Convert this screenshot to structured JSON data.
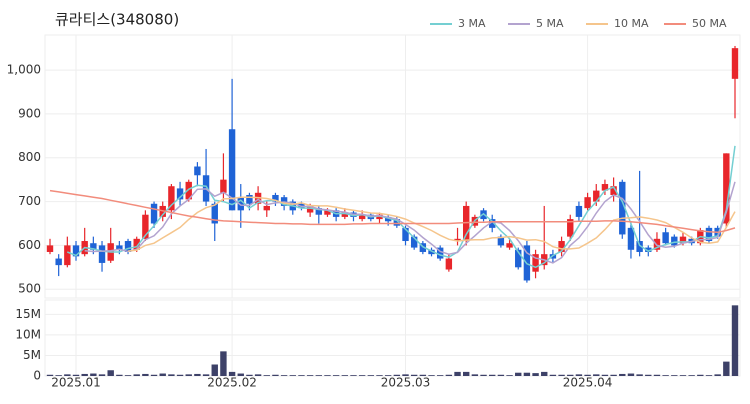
{
  "chart_data": {
    "type": "candlestick",
    "title": "큐라티스(348080)",
    "categories": [
      null,
      null,
      null,
      "2025.01",
      null,
      null,
      null,
      null,
      null,
      null,
      null,
      null,
      null,
      null,
      null,
      null,
      null,
      null,
      null,
      null,
      null,
      "2025.02",
      null,
      null,
      null,
      null,
      null,
      null,
      null,
      null,
      null,
      null,
      null,
      null,
      null,
      null,
      null,
      null,
      null,
      null,
      null,
      "2025.03",
      null,
      null,
      null,
      null,
      null,
      null,
      null,
      null,
      null,
      null,
      null,
      null,
      null,
      null,
      null,
      null,
      null,
      null,
      null,
      null,
      "2025.04",
      null,
      null,
      null,
      null,
      null,
      null,
      null,
      null,
      null,
      null,
      null,
      null,
      null,
      null,
      null,
      null,
      null
    ],
    "open": [
      585,
      570,
      555,
      600,
      580,
      605,
      600,
      565,
      600,
      610,
      590,
      615,
      695,
      665,
      680,
      730,
      705,
      780,
      760,
      695,
      720,
      865,
      710,
      715,
      695,
      680,
      715,
      710,
      700,
      695,
      675,
      685,
      670,
      680,
      665,
      675,
      660,
      670,
      660,
      665,
      660,
      640,
      620,
      605,
      590,
      595,
      545,
      610,
      610,
      645,
      680,
      660,
      620,
      595,
      590,
      600,
      540,
      555,
      580,
      585,
      620,
      690,
      685,
      700,
      725,
      715,
      745,
      640,
      610,
      595,
      590,
      630,
      620,
      605,
      615,
      605,
      640,
      640,
      650,
      980
    ],
    "high": [
      615,
      580,
      620,
      610,
      640,
      620,
      610,
      640,
      610,
      615,
      620,
      680,
      700,
      700,
      740,
      745,
      750,
      790,
      820,
      700,
      810,
      980,
      740,
      720,
      735,
      700,
      720,
      715,
      705,
      700,
      695,
      690,
      685,
      685,
      685,
      680,
      680,
      675,
      675,
      670,
      665,
      645,
      625,
      610,
      595,
      600,
      580,
      640,
      700,
      670,
      685,
      670,
      625,
      615,
      595,
      610,
      590,
      690,
      590,
      620,
      670,
      700,
      720,
      740,
      750,
      755,
      750,
      655,
      770,
      600,
      630,
      640,
      625,
      630,
      620,
      640,
      645,
      645,
      810,
      1055
    ],
    "low": [
      580,
      530,
      550,
      565,
      575,
      580,
      540,
      560,
      580,
      580,
      585,
      610,
      640,
      655,
      660,
      690,
      700,
      735,
      690,
      610,
      700,
      680,
      640,
      680,
      680,
      665,
      690,
      680,
      670,
      680,
      665,
      650,
      665,
      655,
      660,
      655,
      655,
      655,
      650,
      645,
      640,
      600,
      590,
      580,
      575,
      565,
      540,
      600,
      600,
      640,
      655,
      630,
      595,
      590,
      545,
      515,
      525,
      545,
      560,
      575,
      610,
      655,
      680,
      690,
      715,
      700,
      615,
      570,
      575,
      575,
      585,
      600,
      595,
      600,
      600,
      600,
      605,
      615,
      640,
      890
    ],
    "close": [
      600,
      555,
      600,
      575,
      610,
      590,
      560,
      605,
      590,
      585,
      615,
      670,
      650,
      690,
      735,
      705,
      745,
      760,
      700,
      650,
      750,
      680,
      680,
      695,
      720,
      690,
      700,
      690,
      680,
      685,
      690,
      670,
      680,
      665,
      675,
      665,
      670,
      660,
      670,
      655,
      645,
      610,
      595,
      585,
      580,
      570,
      570,
      615,
      690,
      665,
      660,
      640,
      600,
      605,
      550,
      520,
      580,
      580,
      570,
      610,
      660,
      665,
      710,
      725,
      740,
      735,
      625,
      590,
      585,
      585,
      615,
      605,
      600,
      620,
      605,
      635,
      610,
      620,
      810,
      1050
    ],
    "up_color": "#e8262b",
    "down_color": "#1f63d6",
    "ylim": [
      480,
      1080
    ],
    "yticks": [
      500,
      600,
      700,
      800,
      900,
      {
        "value": 1000,
        "label": "1,000"
      }
    ],
    "series": [
      {
        "name": "3 MA",
        "color": "#74cfd2",
        "values": [
          null,
          null,
          585,
          577,
          595,
          592,
          587,
          585,
          585,
          593,
          597,
          623,
          645,
          670,
          692,
          710,
          728,
          737,
          735,
          703,
          700,
          693,
          703,
          685,
          698,
          702,
          703,
          693,
          690,
          685,
          685,
          682,
          680,
          672,
          673,
          668,
          670,
          665,
          667,
          662,
          657,
          637,
          617,
          597,
          587,
          578,
          573,
          585,
          625,
          657,
          672,
          655,
          633,
          615,
          585,
          558,
          550,
          560,
          577,
          587,
          613,
          645,
          678,
          700,
          725,
          733,
          700,
          650,
          600,
          587,
          595,
          602,
          607,
          608,
          608,
          620,
          617,
          622,
          680,
          827
        ]
      },
      {
        "name": "5 MA",
        "color": "#b3a3cf",
        "values": [
          null,
          null,
          null,
          null,
          588,
          586,
          587,
          588,
          591,
          586,
          591,
          613,
          622,
          642,
          672,
          690,
          705,
          728,
          729,
          712,
          721,
          708,
          692,
          691,
          705,
          693,
          697,
          699,
          696,
          689,
          689,
          683,
          681,
          678,
          676,
          671,
          671,
          667,
          668,
          664,
          660,
          648,
          635,
          618,
          603,
          586,
          580,
          584,
          605,
          622,
          640,
          654,
          651,
          634,
          611,
          583,
          571,
          567,
          560,
          572,
          600,
          617,
          643,
          674,
          700,
          715,
          707,
          683,
          655,
          624,
          600,
          596,
          598,
          605,
          609,
          613,
          614,
          618,
          676,
          745
        ]
      },
      {
        "name": "10 MA",
        "color": "#f5c58c",
        "values": [
          null,
          null,
          null,
          null,
          null,
          null,
          null,
          null,
          null,
          587,
          589,
          600,
          605,
          617,
          629,
          641,
          659,
          675,
          686,
          692,
          706,
          707,
          710,
          710,
          709,
          707,
          703,
          696,
          694,
          697,
          691,
          690,
          690,
          687,
          683,
          680,
          677,
          674,
          673,
          670,
          666,
          660,
          651,
          643,
          634,
          623,
          614,
          610,
          612,
          613,
          613,
          617,
          618,
          620,
          617,
          612,
          613,
          609,
          597,
          592,
          592,
          594,
          605,
          617,
          636,
          658,
          662,
          663,
          665,
          662,
          658,
          652,
          641,
          630,
          617,
          607,
          605,
          608,
          641,
          677
        ]
      },
      {
        "name": "50 MA",
        "color": "#f28c7c",
        "values": [
          725,
          722,
          719,
          716,
          713,
          710,
          707,
          703,
          699,
          695,
          691,
          687,
          683,
          679,
          675,
          671,
          667,
          664,
          661,
          658,
          656,
          655,
          654,
          653,
          652,
          651,
          650,
          650,
          649,
          649,
          648,
          648,
          648,
          648,
          648,
          649,
          649,
          650,
          650,
          650,
          650,
          650,
          650,
          650,
          650,
          650,
          650,
          651,
          652,
          653,
          653,
          654,
          654,
          654,
          654,
          654,
          654,
          654,
          654,
          654,
          654,
          655,
          655,
          655,
          656,
          656,
          655,
          654,
          652,
          650,
          648,
          645,
          642,
          639,
          636,
          633,
          631,
          630,
          634,
          640
        ]
      }
    ],
    "volume": {
      "color": "#3d4168",
      "values": [
        300000,
        200000,
        400000,
        300000,
        500000,
        600000,
        400000,
        1400000,
        300000,
        200000,
        400000,
        500000,
        300000,
        600000,
        400000,
        300000,
        400000,
        500000,
        400000,
        2800000,
        6000000,
        1000000,
        600000,
        300000,
        400000,
        200000,
        300000,
        200000,
        200000,
        200000,
        200000,
        200000,
        200000,
        200000,
        200000,
        200000,
        200000,
        200000,
        200000,
        200000,
        300000,
        400000,
        300000,
        300000,
        200000,
        200000,
        300000,
        1000000,
        1000000,
        400000,
        300000,
        300000,
        300000,
        200000,
        800000,
        800000,
        700000,
        1000000,
        300000,
        300000,
        300000,
        400000,
        300000,
        400000,
        300000,
        300000,
        500000,
        600000,
        400000,
        300000,
        300000,
        200000,
        200000,
        200000,
        200000,
        300000,
        200000,
        400000,
        3500000,
        17200000
      ],
      "ylim": [
        0,
        18500000
      ],
      "yticks": [
        0,
        {
          "value": 5000000,
          "label": "5M"
        },
        {
          "value": 10000000,
          "label": "10M"
        },
        {
          "value": 15000000,
          "label": "15M"
        }
      ]
    },
    "grid": true
  }
}
